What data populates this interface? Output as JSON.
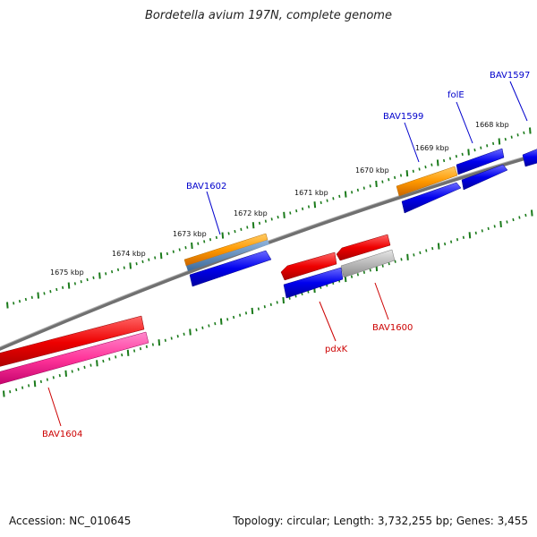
{
  "title": "Bordetella avium 197N, complete genome",
  "footer": {
    "accession": "Accession: NC_010645",
    "summary": "Topology: circular; Length: 3,732,255 bp; Genes: 3,455"
  },
  "colors": {
    "backbone": "#808080",
    "ticks": "#1a7a1a",
    "forward_label": "#0000cc",
    "reverse_label": "#cc0000",
    "cds_blue": "#0000ee",
    "cds_orange": "#ff9900",
    "cds_red": "#ee0000",
    "cds_pink": "#ff3399",
    "cds_gray": "#b0b0b0",
    "cds_steel": "#4f7fb0"
  },
  "scale_labels": [
    "1675 kbp",
    "1674 kbp",
    "1673 kbp",
    "1672 kbp",
    "1671 kbp",
    "1670 kbp",
    "1669 kbp",
    "1668 kbp"
  ],
  "gene_labels": [
    {
      "text": "BAV1597",
      "strand": "forward"
    },
    {
      "text": "folE",
      "strand": "forward"
    },
    {
      "text": "BAV1599",
      "strand": "forward"
    },
    {
      "text": "BAV1602",
      "strand": "forward"
    },
    {
      "text": "BAV1600",
      "strand": "reverse"
    },
    {
      "text": "pdxK",
      "strand": "reverse"
    },
    {
      "text": "BAV1604",
      "strand": "reverse"
    }
  ]
}
